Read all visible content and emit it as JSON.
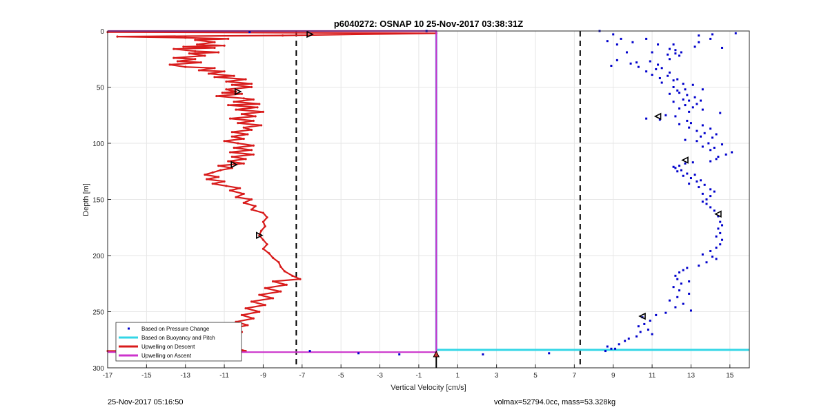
{
  "chart_data": {
    "type": "scatter",
    "title": "p6040272: OSNAP 10 25-Nov-2017 03:38:31Z",
    "xlabel": "Vertical Velocity [cm/s]",
    "ylabel": "Depth [m]",
    "xlim": [
      -17,
      16
    ],
    "ylim": [
      0,
      300
    ],
    "y_reversed": true,
    "xticks": [
      -17,
      -15,
      -13,
      -11,
      -9,
      -7,
      -5,
      -3,
      -1,
      1,
      3,
      5,
      7,
      9,
      11,
      13,
      15
    ],
    "yticks": [
      0,
      50,
      100,
      150,
      200,
      250,
      300
    ],
    "grid": true,
    "legend_position": "bottom-left",
    "dashed_lines_x": [
      -7.3,
      7.3
    ],
    "series": [
      {
        "name": "Based on Pressure Change",
        "style": "points",
        "color": "#0000cc",
        "points": [
          [
            -9.7,
            1
          ],
          [
            -0.6,
            0
          ],
          [
            8.3,
            0
          ],
          [
            9.0,
            3
          ],
          [
            13.4,
            4
          ],
          [
            14.1,
            3
          ],
          [
            15.3,
            2
          ],
          [
            9.4,
            7
          ],
          [
            10.7,
            7
          ],
          [
            14.0,
            7
          ],
          [
            8.7,
            9
          ],
          [
            13.4,
            10
          ],
          [
            10.0,
            10
          ],
          [
            12.1,
            12
          ],
          [
            9.2,
            12
          ],
          [
            11.3,
            12
          ],
          [
            13.2,
            14
          ],
          [
            14.6,
            15
          ],
          [
            11.9,
            16
          ],
          [
            12.2,
            17
          ],
          [
            9.7,
            19
          ],
          [
            11.0,
            19
          ],
          [
            12.5,
            19
          ],
          [
            12.2,
            20
          ],
          [
            11.8,
            21
          ],
          [
            12.4,
            22
          ],
          [
            9.2,
            26
          ],
          [
            11.9,
            25
          ],
          [
            10.2,
            28
          ],
          [
            10.9,
            27
          ],
          [
            9.9,
            29
          ],
          [
            11.3,
            30
          ],
          [
            8.9,
            31
          ],
          [
            10.3,
            32
          ],
          [
            11.5,
            33
          ],
          [
            11.2,
            34
          ],
          [
            10.7,
            36
          ],
          [
            11.9,
            37
          ],
          [
            11.0,
            39
          ],
          [
            11.8,
            40
          ],
          [
            11.4,
            42
          ],
          [
            12.3,
            43
          ],
          [
            12.1,
            44
          ],
          [
            11.5,
            46
          ],
          [
            12.6,
            47
          ],
          [
            13.1,
            48
          ],
          [
            12.1,
            50
          ],
          [
            12.7,
            52
          ],
          [
            12.3,
            53
          ],
          [
            13.6,
            52
          ],
          [
            12.4,
            55
          ],
          [
            11.9,
            56
          ],
          [
            12.8,
            57
          ],
          [
            13.2,
            59
          ],
          [
            12.6,
            61
          ],
          [
            12.9,
            62
          ],
          [
            13.5,
            62
          ],
          [
            12.1,
            63
          ],
          [
            13.3,
            65
          ],
          [
            12.7,
            66
          ],
          [
            13.1,
            68
          ],
          [
            12.4,
            69
          ],
          [
            13.6,
            70
          ],
          [
            12.9,
            72
          ],
          [
            14.5,
            73
          ],
          [
            11.7,
            75
          ],
          [
            12.2,
            76
          ],
          [
            10.7,
            78
          ],
          [
            11.4,
            79
          ],
          [
            12.8,
            80
          ],
          [
            13.0,
            82
          ],
          [
            12.4,
            83
          ],
          [
            13.6,
            84
          ],
          [
            12.9,
            86
          ],
          [
            14.0,
            87
          ],
          [
            13.3,
            89
          ],
          [
            13.7,
            91
          ],
          [
            14.3,
            92
          ],
          [
            13.5,
            94
          ],
          [
            14.1,
            95
          ],
          [
            12.7,
            97
          ],
          [
            13.3,
            98
          ],
          [
            13.9,
            100
          ],
          [
            14.6,
            101
          ],
          [
            13.6,
            103
          ],
          [
            14.2,
            104
          ],
          [
            14.0,
            106
          ],
          [
            15.1,
            108
          ],
          [
            14.8,
            110
          ],
          [
            14.4,
            112
          ],
          [
            14.3,
            114
          ],
          [
            14.0,
            116
          ],
          [
            13.1,
            117
          ],
          [
            12.7,
            118
          ],
          [
            12.4,
            120
          ],
          [
            12.1,
            121
          ],
          [
            12.2,
            122
          ],
          [
            12.5,
            124
          ],
          [
            12.3,
            125
          ],
          [
            12.8,
            127
          ],
          [
            13.2,
            128
          ],
          [
            12.6,
            129
          ],
          [
            13.0,
            131
          ],
          [
            13.5,
            133
          ],
          [
            13.3,
            134
          ],
          [
            12.9,
            136
          ],
          [
            13.7,
            137
          ],
          [
            13.4,
            139
          ],
          [
            14.0,
            141
          ],
          [
            14.2,
            143
          ],
          [
            13.6,
            145
          ],
          [
            14.0,
            147
          ],
          [
            13.8,
            150
          ],
          [
            13.6,
            152
          ],
          [
            13.8,
            154
          ],
          [
            14.0,
            157
          ],
          [
            14.2,
            160
          ],
          [
            14.4,
            165
          ],
          [
            14.5,
            170
          ],
          [
            14.6,
            173
          ],
          [
            14.4,
            176
          ],
          [
            14.5,
            180
          ],
          [
            14.3,
            183
          ],
          [
            14.6,
            186
          ],
          [
            14.5,
            190
          ],
          [
            14.3,
            193
          ],
          [
            14.0,
            196
          ],
          [
            13.6,
            199
          ],
          [
            14.1,
            201
          ],
          [
            14.3,
            203
          ],
          [
            13.8,
            206
          ],
          [
            13.4,
            209
          ],
          [
            12.8,
            211
          ],
          [
            12.6,
            213
          ],
          [
            12.4,
            215
          ],
          [
            12.2,
            218
          ],
          [
            12.3,
            221
          ],
          [
            12.9,
            223
          ],
          [
            12.5,
            225
          ],
          [
            12.1,
            228
          ],
          [
            12.4,
            231
          ],
          [
            12.9,
            234
          ],
          [
            12.3,
            237
          ],
          [
            11.9,
            240
          ],
          [
            12.6,
            243
          ],
          [
            12.2,
            246
          ],
          [
            13.0,
            249
          ],
          [
            11.7,
            251
          ],
          [
            11.2,
            253
          ],
          [
            10.5,
            255
          ],
          [
            10.9,
            258
          ],
          [
            10.6,
            261
          ],
          [
            10.3,
            263
          ],
          [
            10.8,
            266
          ],
          [
            10.4,
            268
          ],
          [
            11.0,
            270
          ],
          [
            10.2,
            272
          ],
          [
            9.8,
            274
          ],
          [
            9.6,
            276
          ],
          [
            9.3,
            279
          ],
          [
            8.7,
            281
          ],
          [
            8.9,
            283
          ],
          [
            8.6,
            285
          ],
          [
            -6.6,
            285
          ],
          [
            -4.1,
            287
          ],
          [
            -2.0,
            288
          ],
          [
            2.3,
            288
          ],
          [
            5.7,
            287
          ],
          [
            9.1,
            283
          ]
        ]
      },
      {
        "name": "Based on Buoyancy and Pitch",
        "style": "line",
        "color": "#33d6e6",
        "points": [
          [
            -0.1,
            0
          ],
          [
            -0.1,
            100
          ],
          [
            -0.1,
            200
          ],
          [
            -0.1,
            284
          ],
          [
            16,
            284
          ]
        ]
      },
      {
        "name": "Upwelling on Descent",
        "style": "line",
        "color": "#d81b1b",
        "points": [
          [
            -17,
            1
          ],
          [
            -0.1,
            2
          ],
          [
            -8.0,
            4
          ],
          [
            -16.5,
            5
          ],
          [
            -13.0,
            6
          ],
          [
            -10.8,
            7
          ],
          [
            -12.5,
            8
          ],
          [
            -11.5,
            10
          ],
          [
            -12.4,
            12
          ],
          [
            -11.0,
            13
          ],
          [
            -13.1,
            14
          ],
          [
            -11.5,
            15
          ],
          [
            -13.6,
            16
          ],
          [
            -12.5,
            18
          ],
          [
            -11.3,
            19
          ],
          [
            -12.8,
            20
          ],
          [
            -12.0,
            22
          ],
          [
            -13.6,
            24
          ],
          [
            -12.5,
            25
          ],
          [
            -13.4,
            27
          ],
          [
            -12.2,
            28
          ],
          [
            -13.8,
            30
          ],
          [
            -13.0,
            32
          ],
          [
            -11.5,
            33
          ],
          [
            -12.3,
            35
          ],
          [
            -11.0,
            36
          ],
          [
            -11.8,
            38
          ],
          [
            -10.5,
            40
          ],
          [
            -11.5,
            41
          ],
          [
            -9.9,
            43
          ],
          [
            -10.9,
            45
          ],
          [
            -9.6,
            47
          ],
          [
            -10.6,
            48
          ],
          [
            -9.6,
            50
          ],
          [
            -10.9,
            52
          ],
          [
            -10.4,
            54
          ],
          [
            -11.1,
            55
          ],
          [
            -10.1,
            56
          ],
          [
            -11.4,
            58
          ],
          [
            -10.0,
            60
          ],
          [
            -9.5,
            61
          ],
          [
            -10.5,
            63
          ],
          [
            -9.2,
            65
          ],
          [
            -10.8,
            66
          ],
          [
            -9.3,
            68
          ],
          [
            -10.4,
            70
          ],
          [
            -9.0,
            72
          ],
          [
            -10.1,
            74
          ],
          [
            -9.4,
            76
          ],
          [
            -10.7,
            78
          ],
          [
            -9.5,
            80
          ],
          [
            -10.3,
            82
          ],
          [
            -9.1,
            84
          ],
          [
            -10.0,
            86
          ],
          [
            -9.6,
            88
          ],
          [
            -10.6,
            90
          ],
          [
            -9.8,
            92
          ],
          [
            -10.6,
            94
          ],
          [
            -10.0,
            96
          ],
          [
            -11.0,
            98
          ],
          [
            -10.3,
            100
          ],
          [
            -9.5,
            102
          ],
          [
            -10.5,
            104
          ],
          [
            -9.6,
            106
          ],
          [
            -10.7,
            108
          ],
          [
            -9.5,
            110
          ],
          [
            -10.6,
            112
          ],
          [
            -9.9,
            114
          ],
          [
            -10.8,
            116
          ],
          [
            -10.0,
            118
          ],
          [
            -11.3,
            120
          ],
          [
            -10.6,
            122
          ],
          [
            -11.2,
            124
          ],
          [
            -11.6,
            126
          ],
          [
            -12.0,
            128
          ],
          [
            -11.3,
            130
          ],
          [
            -11.9,
            132
          ],
          [
            -11.0,
            134
          ],
          [
            -11.6,
            136
          ],
          [
            -10.9,
            138
          ],
          [
            -10.2,
            140
          ],
          [
            -10.7,
            142
          ],
          [
            -10.0,
            145
          ],
          [
            -10.4,
            148
          ],
          [
            -9.6,
            150
          ],
          [
            -10.0,
            153
          ],
          [
            -9.4,
            156
          ],
          [
            -9.6,
            159
          ],
          [
            -9.0,
            162
          ],
          [
            -8.8,
            166
          ],
          [
            -9.0,
            170
          ],
          [
            -8.9,
            174
          ],
          [
            -9.1,
            178
          ],
          [
            -9.2,
            182
          ],
          [
            -9.0,
            186
          ],
          [
            -8.8,
            190
          ],
          [
            -9.0,
            194
          ],
          [
            -8.7,
            198
          ],
          [
            -8.5,
            202
          ],
          [
            -8.2,
            206
          ],
          [
            -8.1,
            210
          ],
          [
            -7.9,
            214
          ],
          [
            -7.5,
            218
          ],
          [
            -7.1,
            221
          ],
          [
            -8.5,
            223
          ],
          [
            -7.8,
            226
          ],
          [
            -8.9,
            229
          ],
          [
            -8.1,
            232
          ],
          [
            -9.2,
            235
          ],
          [
            -8.5,
            238
          ],
          [
            -9.6,
            241
          ],
          [
            -8.9,
            244
          ],
          [
            -9.9,
            247
          ],
          [
            -9.2,
            250
          ],
          [
            -10.1,
            253
          ],
          [
            -9.5,
            256
          ],
          [
            -10.4,
            259
          ],
          [
            -9.8,
            262
          ],
          [
            -10.6,
            265
          ],
          [
            -10.1,
            268
          ],
          [
            -10.5,
            272
          ],
          [
            -10.2,
            276
          ],
          [
            -10.5,
            280
          ],
          [
            -10.3,
            283
          ],
          [
            -9.9,
            285
          ],
          [
            -17,
            285
          ]
        ]
      },
      {
        "name": "Upwelling on Ascent",
        "style": "line",
        "color": "#cc33cc",
        "points": [
          [
            -17,
            0
          ],
          [
            -0.1,
            0
          ],
          [
            -0.1,
            286
          ],
          [
            -17,
            286
          ]
        ]
      }
    ],
    "markers": [
      [
        -6.6,
        3
      ],
      [
        -10.3,
        54
      ],
      [
        -10.5,
        119
      ],
      [
        -9.2,
        182
      ],
      [
        -10.4,
        279
      ],
      [
        -10.5,
        284
      ],
      [
        11.3,
        76
      ],
      [
        12.7,
        115
      ],
      [
        14.4,
        163
      ],
      [
        10.5,
        254
      ]
    ],
    "ascent_arrow_x": -0.1
  },
  "footer": {
    "timestamp": "25-Nov-2017 05:16:50",
    "info": "volmax=52794.0cc, mass=53.328kg"
  }
}
